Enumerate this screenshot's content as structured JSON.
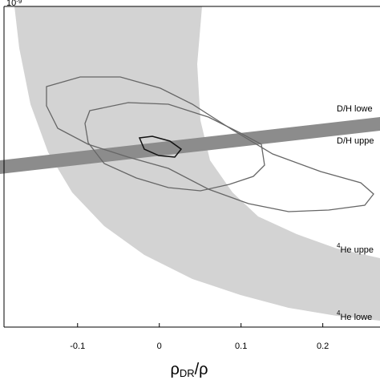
{
  "chart_data": {
    "type": "contour",
    "y_scale_label": {
      "base": "10",
      "exponent": "-9"
    },
    "xlabel": {
      "main": "ρ",
      "sub": "DR",
      "rest": "/ρ"
    },
    "xlim": [
      -0.19,
      0.27
    ],
    "xticks": [
      -0.1,
      0,
      0.1,
      0.2
    ],
    "annotations": [
      {
        "sup": "",
        "text": "D/H lowe"
      },
      {
        "sup": "",
        "text": "D/H uppe"
      },
      {
        "sup": "4",
        "text": "He uppe"
      },
      {
        "sup": "4",
        "text": "He lowe"
      }
    ]
  }
}
